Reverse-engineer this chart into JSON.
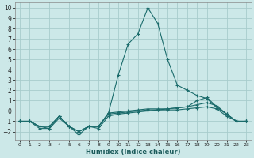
{
  "xlabel": "Humidex (Indice chaleur)",
  "background_color": "#cce8e8",
  "grid_color": "#a8cccc",
  "line_color": "#1a6b6b",
  "xlim": [
    -0.5,
    23.5
  ],
  "ylim": [
    -2.8,
    10.5
  ],
  "xticks": [
    0,
    1,
    2,
    3,
    4,
    5,
    6,
    7,
    8,
    9,
    10,
    11,
    12,
    13,
    14,
    15,
    16,
    17,
    18,
    19,
    20,
    21,
    22,
    23
  ],
  "yticks": [
    -2,
    -1,
    0,
    1,
    2,
    3,
    4,
    5,
    6,
    7,
    8,
    9,
    10
  ],
  "series": [
    {
      "x": [
        0,
        1,
        2,
        3,
        4,
        5,
        6,
        7,
        8,
        9,
        10,
        11,
        12,
        13,
        14,
        15,
        16,
        17,
        18,
        19,
        20,
        21,
        22,
        23
      ],
      "y": [
        -1,
        -1,
        -1.5,
        -1.7,
        -0.5,
        -1.5,
        -2,
        -1.5,
        -1.5,
        -0.2,
        3.5,
        6.5,
        7.5,
        10,
        8.5,
        5,
        2.5,
        2,
        1.5,
        1.2,
        0.3,
        -0.3,
        -1,
        -1
      ]
    },
    {
      "x": [
        0,
        1,
        2,
        3,
        4,
        5,
        6,
        7,
        8,
        9,
        10,
        11,
        12,
        13,
        14,
        15,
        16,
        17,
        18,
        19,
        20,
        21,
        22,
        23
      ],
      "y": [
        -1,
        -1,
        -1.7,
        -1.7,
        -0.7,
        -1.5,
        -2,
        -1.5,
        -1.7,
        -0.5,
        -0.3,
        -0.2,
        -0.1,
        0.0,
        0.1,
        0.1,
        0.1,
        0.2,
        0.3,
        0.4,
        0.2,
        -0.5,
        -1,
        -1
      ]
    },
    {
      "x": [
        0,
        1,
        2,
        3,
        4,
        5,
        6,
        7,
        8,
        9,
        10,
        11,
        12,
        13,
        14,
        15,
        16,
        17,
        18,
        19,
        20,
        21,
        22,
        23
      ],
      "y": [
        -1,
        -1,
        -1.5,
        -1.5,
        -0.5,
        -1.5,
        -2.3,
        -1.5,
        -1.5,
        -0.3,
        -0.2,
        -0.1,
        0.0,
        0.1,
        0.1,
        0.2,
        0.3,
        0.4,
        0.6,
        0.8,
        0.5,
        -0.3,
        -1,
        -1
      ]
    },
    {
      "x": [
        0,
        1,
        2,
        3,
        4,
        5,
        6,
        7,
        8,
        9,
        10,
        11,
        12,
        13,
        14,
        15,
        16,
        17,
        18,
        19,
        20,
        21,
        22,
        23
      ],
      "y": [
        -1,
        -1,
        -1.5,
        -1.5,
        -0.5,
        -1.5,
        -2,
        -1.5,
        -1.5,
        -0.2,
        -0.1,
        0.0,
        0.1,
        0.2,
        0.2,
        0.2,
        0.3,
        0.4,
        1.0,
        1.3,
        0.4,
        -0.3,
        -1,
        -1
      ]
    }
  ]
}
